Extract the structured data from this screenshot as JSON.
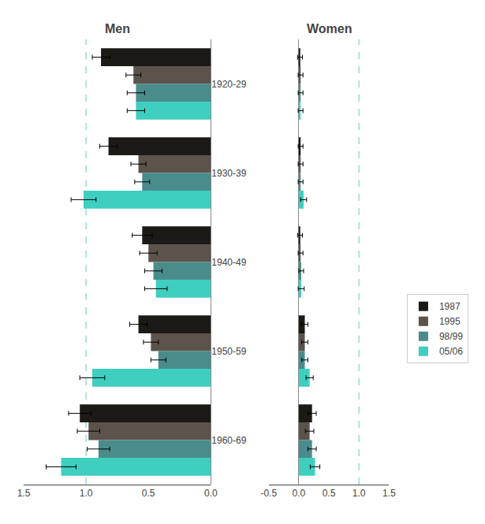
{
  "chart_data": [
    {
      "type": "bar",
      "orientation": "horizontal",
      "title": "Men",
      "categories": [
        "1920-29",
        "1930-39",
        "1940-49",
        "1950-59",
        "1960-69"
      ],
      "series": [
        {
          "name": "1987",
          "color": "#1c1a17",
          "values": [
            0.88,
            0.82,
            0.55,
            0.58,
            1.05
          ],
          "errors": [
            0.07,
            0.07,
            0.08,
            0.07,
            0.09
          ]
        },
        {
          "name": "1995",
          "color": "#5c534a",
          "values": [
            0.62,
            0.58,
            0.5,
            0.48,
            0.98
          ],
          "errors": [
            0.06,
            0.06,
            0.07,
            0.06,
            0.09
          ]
        },
        {
          "name": "98/99",
          "color": "#4a8c8c",
          "values": [
            0.6,
            0.55,
            0.46,
            0.42,
            0.9
          ],
          "errors": [
            0.07,
            0.06,
            0.07,
            0.06,
            0.09
          ]
        },
        {
          "name": "05/06",
          "color": "#3ecfbf",
          "values": [
            0.6,
            1.02,
            0.44,
            0.95,
            1.2
          ],
          "errors": [
            0.07,
            0.1,
            0.09,
            0.1,
            0.12
          ]
        }
      ],
      "xlim": [
        1.5,
        0
      ],
      "xticks": [
        {
          "value": 0,
          "label": "0.0"
        },
        0.5,
        {
          "value": 1,
          "label": "1.0"
        },
        1.5
      ],
      "reference_line": {
        "x": 1,
        "color": "#7dd5c8",
        "line_style": "dashed"
      },
      "grid": false,
      "legend": "right"
    },
    {
      "type": "bar",
      "orientation": "horizontal",
      "title": "Women",
      "categories": [
        "1920-29",
        "1930-39",
        "1940-49",
        "1950-59",
        "1960-69"
      ],
      "series": [
        {
          "name": "1987",
          "color": "#1c1a17",
          "values": [
            0.02,
            0.03,
            0.02,
            0.1,
            0.22
          ],
          "errors": [
            0.04,
            0.04,
            0.04,
            0.05,
            0.07
          ]
        },
        {
          "name": "1995",
          "color": "#5c534a",
          "values": [
            0.03,
            0.03,
            0.03,
            0.1,
            0.18
          ],
          "errors": [
            0.04,
            0.04,
            0.04,
            0.05,
            0.07
          ]
        },
        {
          "name": "98/99",
          "color": "#4a8c8c",
          "values": [
            0.03,
            0.03,
            0.04,
            0.1,
            0.22
          ],
          "errors": [
            0.04,
            0.04,
            0.04,
            0.05,
            0.07
          ]
        },
        {
          "name": "05/06",
          "color": "#3ecfbf",
          "values": [
            0.03,
            0.08,
            0.04,
            0.18,
            0.27
          ],
          "errors": [
            0.04,
            0.05,
            0.05,
            0.06,
            0.08
          ]
        }
      ],
      "xlim": [
        -0.5,
        1.5
      ],
      "xticks": [
        -0.5,
        {
          "value": 0,
          "label": "0.0"
        },
        0.5,
        {
          "value": 1,
          "label": "1.0"
        },
        1.5
      ],
      "reference_line": {
        "x": 1,
        "color": "#7dd5c8",
        "line_style": "dashed"
      },
      "grid": false,
      "legend": false,
      "tick_labels": "x"
    }
  ]
}
